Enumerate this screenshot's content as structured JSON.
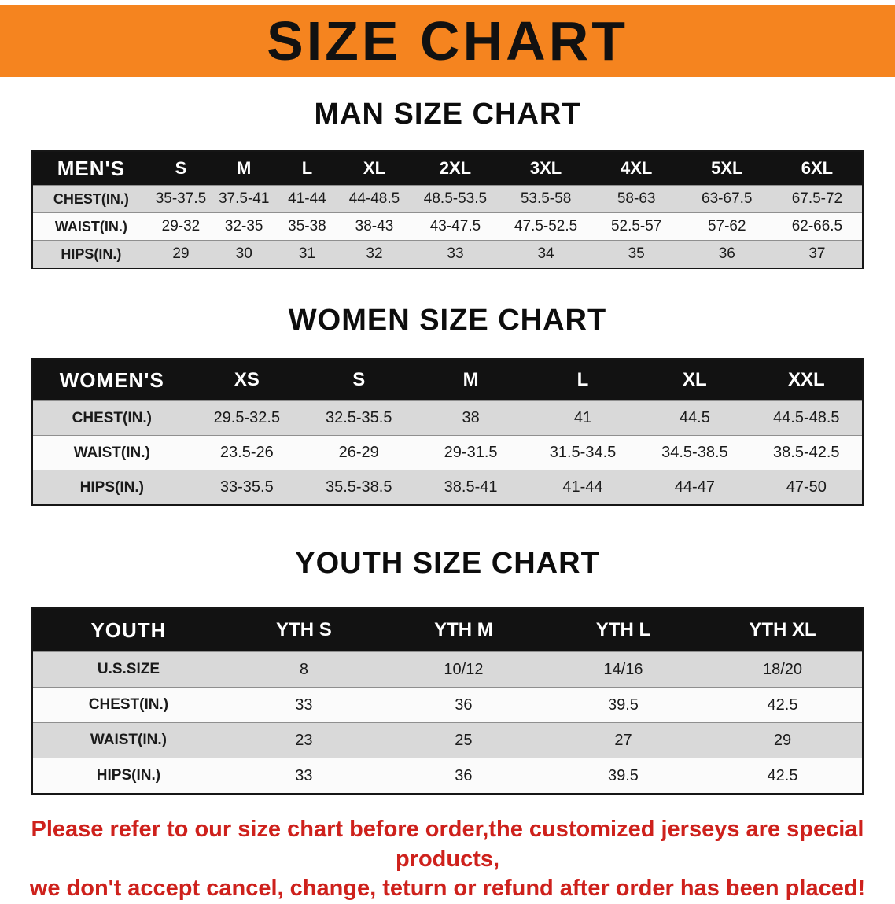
{
  "banner": {
    "title": "SIZE CHART",
    "bg_color": "#f5841f",
    "text_color": "#111111"
  },
  "colors": {
    "header_row_bg": "#121212",
    "header_row_text": "#ffffff",
    "row_gray": "#d9d9d9",
    "row_white": "#fbfbfb",
    "disclaimer_red": "#ce211c"
  },
  "sections": [
    {
      "heading": "MAN SIZE CHART",
      "table": {
        "header": [
          "MEN'S",
          "S",
          "M",
          "L",
          "XL",
          "2XL",
          "3XL",
          "4XL",
          "5XL",
          "6XL"
        ],
        "rows": [
          [
            "CHEST(IN.)",
            "35-37.5",
            "37.5-41",
            "41-44",
            "44-48.5",
            "48.5-53.5",
            "53.5-58",
            "58-63",
            "63-67.5",
            "67.5-72"
          ],
          [
            "WAIST(IN.)",
            "29-32",
            "32-35",
            "35-38",
            "38-43",
            "43-47.5",
            "47.5-52.5",
            "52.5-57",
            "57-62",
            "62-66.5"
          ],
          [
            "HIPS(IN.)",
            "29",
            "30",
            "31",
            "32",
            "33",
            "34",
            "35",
            "36",
            "37"
          ]
        ]
      }
    },
    {
      "heading": "WOMEN SIZE CHART",
      "table": {
        "header": [
          "WOMEN'S",
          "XS",
          "S",
          "M",
          "L",
          "XL",
          "XXL"
        ],
        "rows": [
          [
            "CHEST(IN.)",
            "29.5-32.5",
            "32.5-35.5",
            "38",
            "41",
            "44.5",
            "44.5-48.5"
          ],
          [
            "WAIST(IN.)",
            "23.5-26",
            "26-29",
            "29-31.5",
            "31.5-34.5",
            "34.5-38.5",
            "38.5-42.5"
          ],
          [
            "HIPS(IN.)",
            "33-35.5",
            "35.5-38.5",
            "38.5-41",
            "41-44",
            "44-47",
            "47-50"
          ]
        ]
      }
    },
    {
      "heading": "YOUTH SIZE CHART",
      "table": {
        "header": [
          "YOUTH",
          "YTH S",
          "YTH M",
          "YTH L",
          "YTH XL"
        ],
        "rows": [
          [
            "U.S.SIZE",
            "8",
            "10/12",
            "14/16",
            "18/20"
          ],
          [
            "CHEST(IN.)",
            "33",
            "36",
            "39.5",
            "42.5"
          ],
          [
            "WAIST(IN.)",
            "23",
            "25",
            "27",
            "29"
          ],
          [
            "HIPS(IN.)",
            "33",
            "36",
            "39.5",
            "42.5"
          ]
        ]
      }
    }
  ],
  "disclaimer": {
    "line1": "Please refer to our size chart before order,the customized jerseys are special products,",
    "line2": "we don't accept cancel, change, teturn or refund after order has been placed!"
  }
}
